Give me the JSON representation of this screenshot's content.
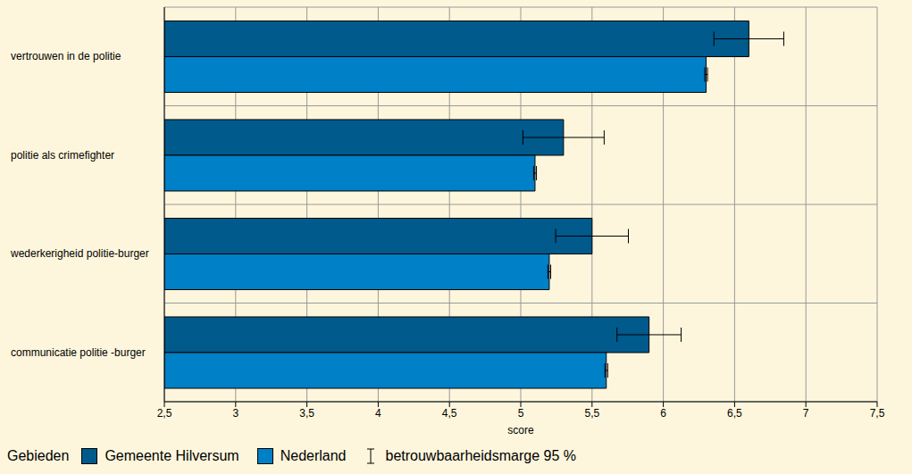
{
  "chart_data": {
    "type": "bar",
    "orientation": "horizontal",
    "categories": [
      "vertrouwen in de politie",
      "politie als crimefighter",
      "wederkerigheid politie-burger",
      "communicatie politie -burger"
    ],
    "series": [
      {
        "name": "Gemeente Hilversum",
        "color": "#005a8c",
        "values": [
          6.6,
          5.3,
          5.5,
          5.9
        ],
        "errors": [
          0.245,
          0.285,
          0.255,
          0.225
        ]
      },
      {
        "name": "Nederland",
        "color": "#0080c6",
        "values": [
          6.3,
          5.1,
          5.2,
          5.6
        ],
        "errors": [
          0.01,
          0.01,
          0.01,
          0.01
        ]
      }
    ],
    "x_label": "score",
    "xlim": [
      2.5,
      7.5
    ],
    "xticks": [
      {
        "value": 2.5,
        "label": "2,5"
      },
      3,
      {
        "value": 3.5,
        "label": "3,5"
      },
      4,
      {
        "value": 4.5,
        "label": "4,5"
      },
      5,
      {
        "value": 5.5,
        "label": "5,5"
      },
      6,
      {
        "value": 6.5,
        "label": "6,5"
      },
      7,
      {
        "value": 7.5,
        "label": "7,5"
      }
    ],
    "grid": true,
    "legend": "bottom",
    "legend_title": "Gebieden",
    "error_label": "betrouwbaarheidsmarge 95 %"
  }
}
